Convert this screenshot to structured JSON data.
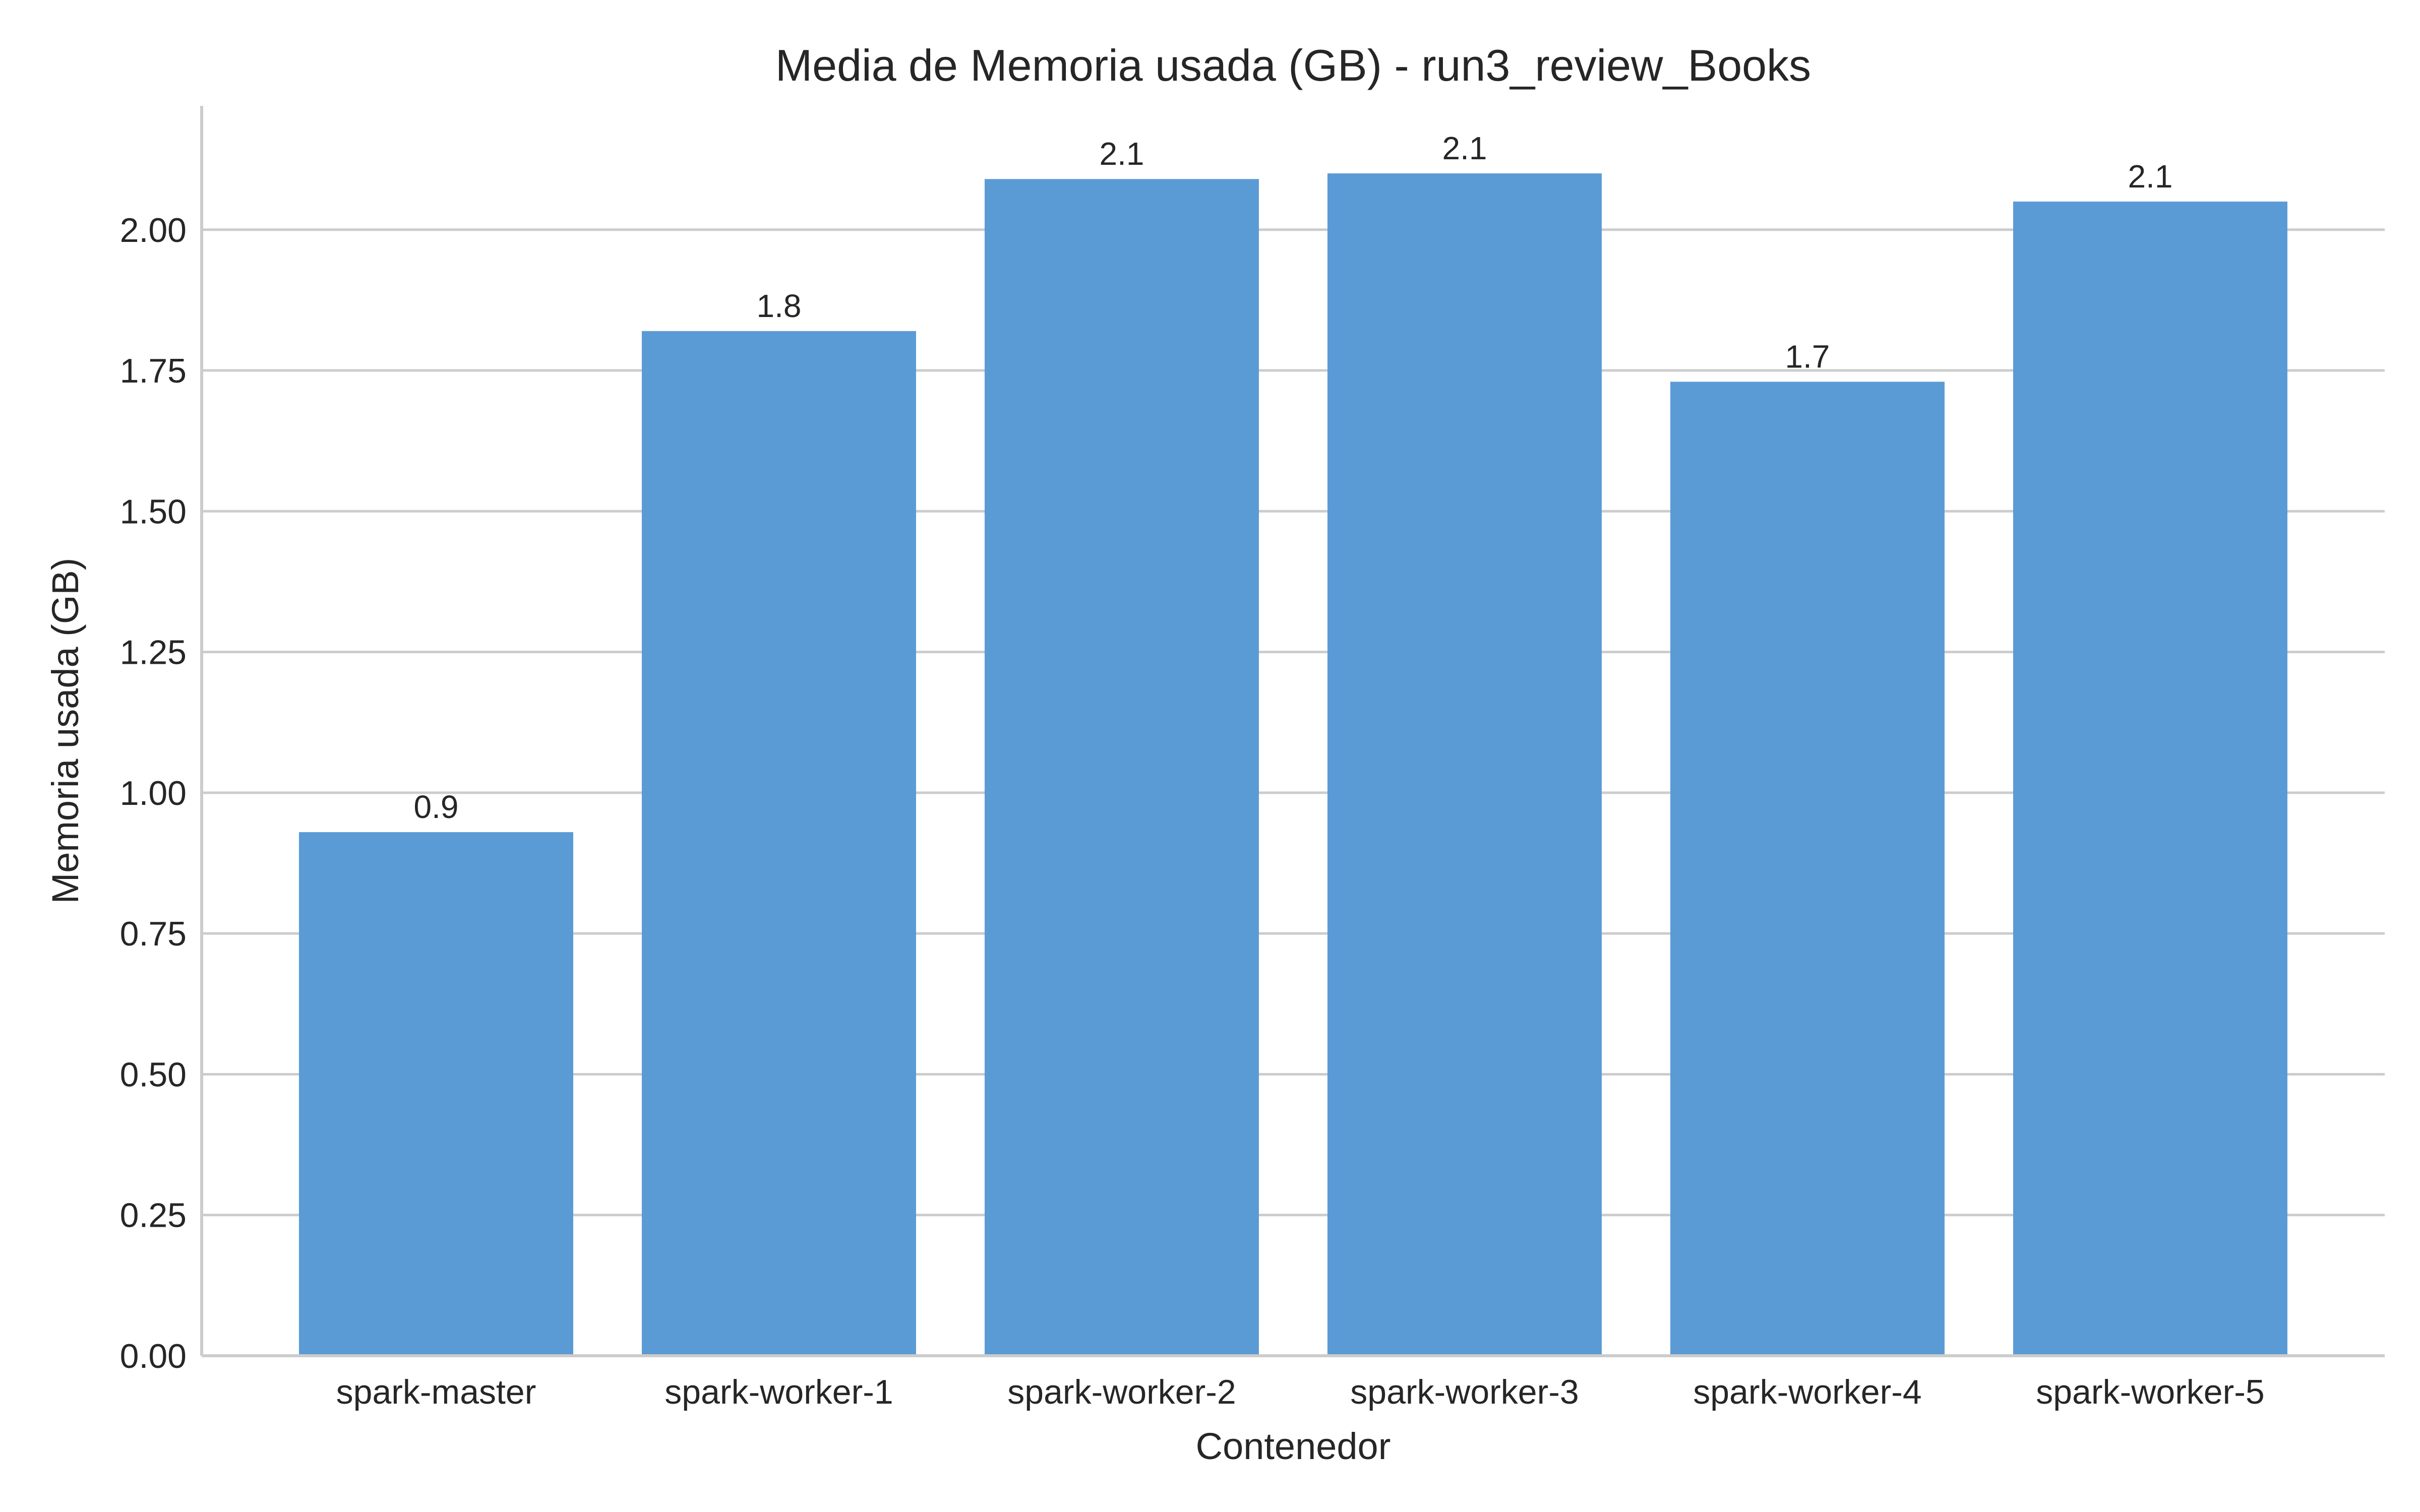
{
  "chart_data": {
    "type": "bar",
    "title": "Media de Memoria usada (GB) - run3_review_Books",
    "xlabel": "Contenedor",
    "ylabel": "Memoria usada (GB)",
    "categories": [
      "spark-master",
      "spark-worker-1",
      "spark-worker-2",
      "spark-worker-3",
      "spark-worker-4",
      "spark-worker-5"
    ],
    "values": [
      0.93,
      1.82,
      2.09,
      2.1,
      1.73,
      2.05
    ],
    "value_labels": [
      "0.9",
      "1.8",
      "2.1",
      "2.1",
      "1.7",
      "2.1"
    ],
    "ylim": [
      0,
      2.22
    ],
    "yticks": [
      0.0,
      0.25,
      0.5,
      0.75,
      1.0,
      1.25,
      1.5,
      1.75,
      2.0
    ],
    "ytick_labels": [
      "0.00",
      "0.25",
      "0.50",
      "0.75",
      "1.00",
      "1.25",
      "1.50",
      "1.75",
      "2.00"
    ],
    "grid": "horizontal",
    "bar_color": "#5b9bd5"
  }
}
